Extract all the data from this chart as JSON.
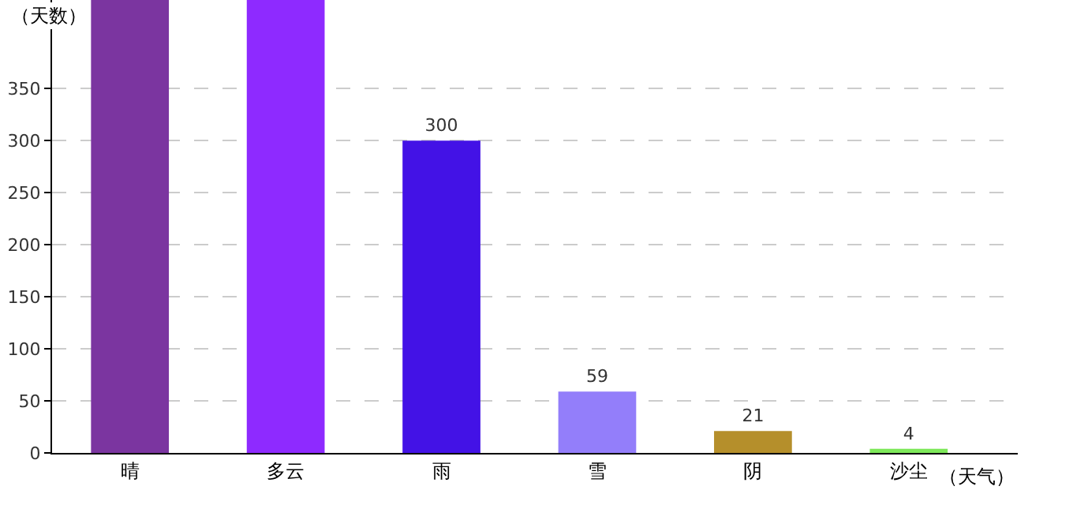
{
  "chart_data": {
    "type": "bar",
    "ylabel": "（天数）",
    "xlabel": "（天气）",
    "categories": [
      "晴",
      "多云",
      "雨",
      "雪",
      "阴",
      "沙尘"
    ],
    "values": [
      435,
      435,
      300,
      59,
      21,
      4
    ],
    "colors": [
      "#7b35a0",
      "#8e2aff",
      "#4312e6",
      "#937efa",
      "#b58f2b",
      "#7ee85a"
    ],
    "value_labels": [
      null,
      null,
      "300",
      "59",
      "21",
      "4"
    ],
    "ylim": [
      0,
      435
    ],
    "yticks": [
      0,
      50,
      100,
      150,
      200,
      250,
      300,
      350
    ],
    "grid": "y",
    "legend": false
  }
}
